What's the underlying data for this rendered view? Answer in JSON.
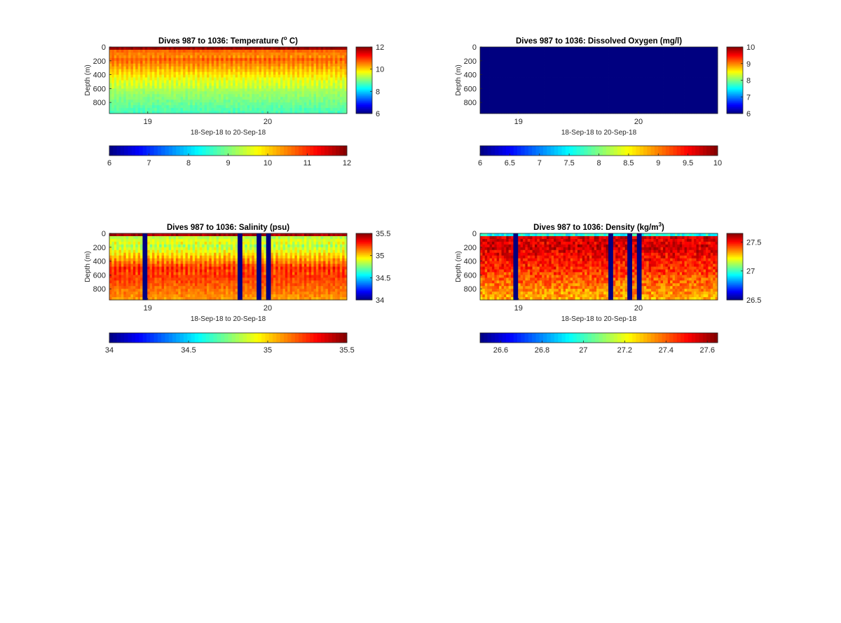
{
  "figure": {
    "background": "#ffffff",
    "colormap": "jet"
  },
  "chart_data": [
    {
      "type": "heatmap",
      "variable": "temperature",
      "title": "Dives 987 to 1036: Temperature (",
      "title_sup": "o",
      "title_suffix": " C)",
      "ylabel": "Depth (m)",
      "xlabel": "18-Sep-18 to 20-Sep-18",
      "xticks": [
        19,
        20
      ],
      "xlim": [
        18.68,
        20.66
      ],
      "ylim": [
        960,
        0
      ],
      "yticks": [
        0,
        200,
        400,
        600,
        800
      ],
      "clim": [
        6,
        12
      ],
      "vertical_colorbar_ticks": [
        "6",
        "8",
        "10",
        "12"
      ],
      "horizontal_colorbar_ticks": [
        "6",
        "7",
        "8",
        "9",
        "10",
        "11",
        "12"
      ],
      "dives": 50,
      "profile": {
        "surface": 11.8,
        "thermocline": 10.6,
        "mid": 9.4,
        "deep": 8.6,
        "noise": 0.12
      },
      "gaps": [],
      "gap_fill": 6
    },
    {
      "type": "heatmap",
      "variable": "dissolved_oxygen",
      "title": "Dives 987 to 1036: Dissolved Oxygen (mg/l)",
      "title_sup": "",
      "title_suffix": "",
      "ylabel": "Depth (m)",
      "xlabel": "18-Sep-18 to 20-Sep-18",
      "xticks": [
        19,
        20
      ],
      "xlim": [
        18.68,
        20.66
      ],
      "ylim": [
        960,
        0
      ],
      "yticks": [
        0,
        200,
        400,
        600,
        800
      ],
      "clim": [
        6,
        10
      ],
      "vertical_colorbar_ticks": [
        "6",
        "7",
        "8",
        "9",
        "10"
      ],
      "horizontal_colorbar_ticks": [
        "6",
        "6.5",
        "7",
        "7.5",
        "8",
        "8.5",
        "9",
        "9.5",
        "10"
      ],
      "dives": 50,
      "uniform_value": 6,
      "gaps": [],
      "gap_fill": 6
    },
    {
      "type": "heatmap",
      "variable": "salinity",
      "title": "Dives 987 to 1036: Salinity (psu)",
      "title_sup": "",
      "title_suffix": "",
      "ylabel": "Depth (m)",
      "xlabel": "18-Sep-18 to 20-Sep-18",
      "xticks": [
        19,
        20
      ],
      "xlim": [
        18.68,
        20.66
      ],
      "ylim": [
        960,
        0
      ],
      "yticks": [
        0,
        200,
        400,
        600,
        800
      ],
      "clim": [
        34,
        35.5
      ],
      "vertical_colorbar_ticks": [
        "34",
        "34.5",
        "35",
        "35.5"
      ],
      "horizontal_colorbar_ticks": [
        "34",
        "34.5",
        "35",
        "35.5"
      ],
      "dives": 50,
      "profile": {
        "surface": 35.45,
        "thermocline": 34.85,
        "mid": 35.3,
        "deep": 35.1,
        "noise": 0.05
      },
      "gaps": [
        7,
        27,
        31,
        33
      ],
      "gap_fill": 34
    },
    {
      "type": "heatmap",
      "variable": "density",
      "title": "Dives 987 to 1036: Density (kg/m",
      "title_sup": "3",
      "title_suffix": ")",
      "ylabel": "Depth (m)",
      "xlabel": "18-Sep-18 to 20-Sep-18",
      "xticks": [
        19,
        20
      ],
      "xlim": [
        18.68,
        20.66
      ],
      "ylim": [
        960,
        0
      ],
      "yticks": [
        0,
        200,
        400,
        600,
        800
      ],
      "clim": [
        26.5,
        27.65
      ],
      "vertical_colorbar_ticks": [
        "26.5",
        "27",
        "27.5"
      ],
      "horizontal_colorbar_ticks": [
        "26.6",
        "26.8",
        "27",
        "27.2",
        "27.4",
        "27.6"
      ],
      "dives": 50,
      "profile": {
        "surface": 26.95,
        "thermocline": 27.55,
        "mid": 27.45,
        "deep": 27.3,
        "noise": 0.08
      },
      "gaps": [
        7,
        27,
        31,
        33
      ],
      "gap_fill": 26.5
    }
  ]
}
